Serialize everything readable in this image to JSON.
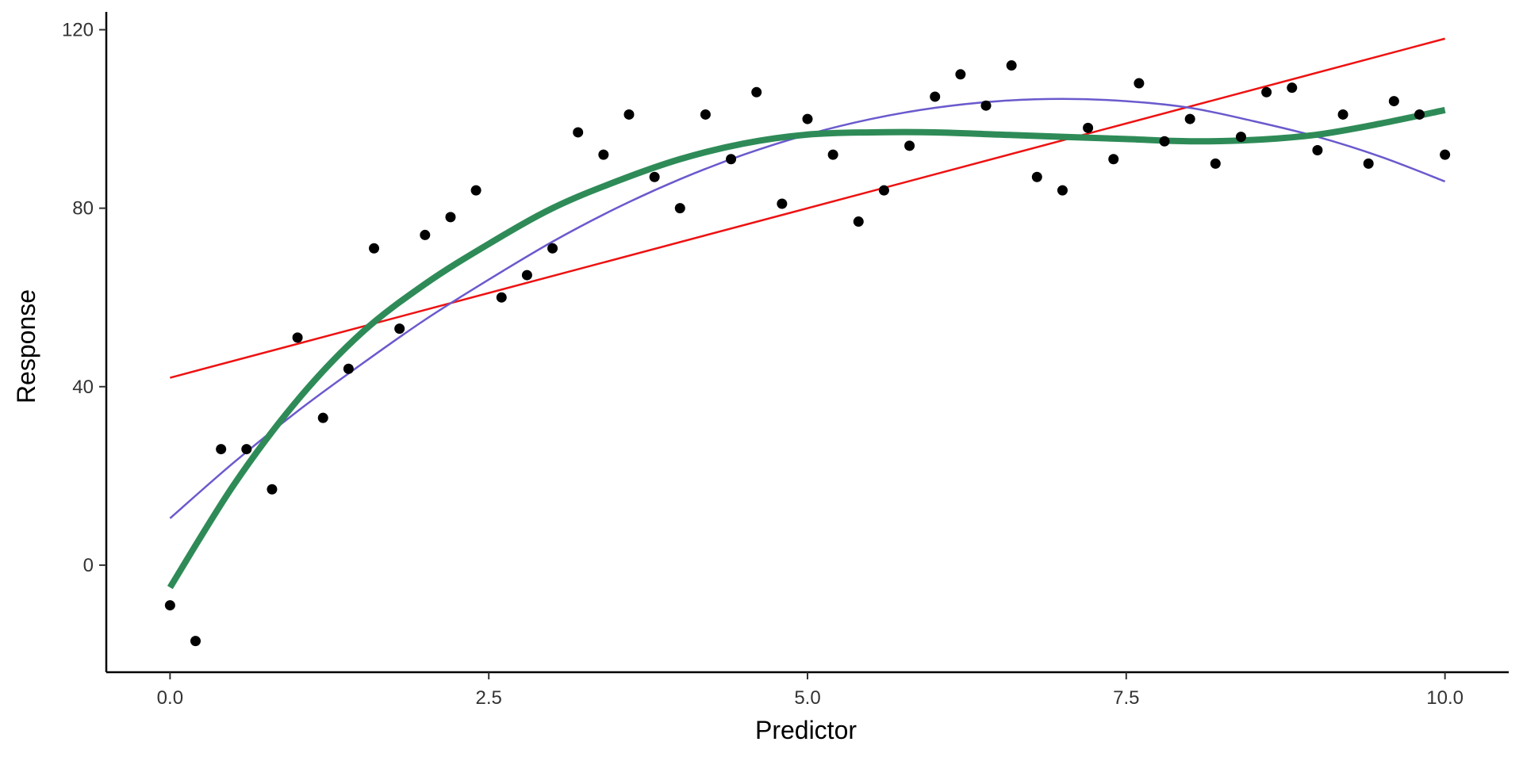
{
  "chart_data": {
    "type": "scatter",
    "title": "",
    "xlabel": "Predictor",
    "ylabel": "Response",
    "xlim": [
      -0.5,
      10.5
    ],
    "ylim": [
      -24,
      124
    ],
    "grid": false,
    "legend": "none",
    "x_ticks": [
      0.0,
      2.5,
      5.0,
      7.5,
      10.0
    ],
    "x_tick_labels": [
      "0.0",
      "2.5",
      "5.0",
      "7.5",
      "10.0"
    ],
    "y_ticks": [
      0,
      40,
      80,
      120
    ],
    "y_tick_labels": [
      "0",
      "40",
      "80",
      "120"
    ],
    "points": {
      "color": "#000000",
      "x": [
        0.0,
        0.2,
        0.4,
        0.6,
        0.8,
        1.0,
        1.2,
        1.4,
        1.6,
        1.8,
        2.0,
        2.2,
        2.4,
        2.6,
        2.8,
        3.0,
        3.2,
        3.4,
        3.6,
        3.8,
        4.0,
        4.2,
        4.4,
        4.6,
        4.8,
        5.0,
        5.2,
        5.4,
        5.6,
        5.8,
        6.0,
        6.2,
        6.4,
        6.6,
        6.8,
        7.0,
        7.2,
        7.4,
        7.6,
        7.8,
        8.0,
        8.2,
        8.4,
        8.6,
        8.8,
        9.0,
        9.2,
        9.4,
        9.6,
        9.8,
        10.0
      ],
      "y": [
        -9,
        -17,
        26,
        26,
        17,
        51,
        33,
        44,
        71,
        53,
        74,
        78,
        84,
        60,
        65,
        71,
        97,
        92,
        101,
        87,
        80,
        101,
        91,
        106,
        81,
        100,
        92,
        77,
        84,
        94,
        105,
        110,
        103,
        112,
        87,
        84,
        98,
        91,
        108,
        95,
        100,
        90,
        96,
        106,
        107,
        93,
        101,
        90,
        104,
        101,
        92
      ]
    },
    "series": [
      {
        "type": "line",
        "color": "#ee1111",
        "x": [
          0,
          10
        ],
        "values": [
          42,
          118
        ]
      },
      {
        "type": "line",
        "color": "#6a5acd",
        "x": [
          0,
          0.5,
          1,
          1.5,
          2,
          2.5,
          3,
          3.5,
          4,
          4.5,
          5,
          5.5,
          6,
          6.5,
          7,
          7.5,
          8,
          8.5,
          9,
          9.5,
          10
        ],
        "values": [
          10.5,
          23,
          34.5,
          45,
          55,
          64,
          72.5,
          80,
          86.5,
          92,
          96.5,
          100,
          102.5,
          104,
          104.5,
          104,
          102.5,
          99.5,
          96,
          91.5,
          86
        ]
      },
      {
        "type": "line",
        "color": "#2e8b57",
        "x": [
          0,
          0.5,
          1,
          1.5,
          2,
          2.5,
          3,
          3.5,
          4,
          4.5,
          5,
          5.5,
          6,
          6.5,
          7,
          7.5,
          8,
          8.5,
          9,
          9.5,
          10
        ],
        "values": [
          -5,
          18,
          37,
          52,
          63,
          72,
          80,
          86,
          91,
          94.5,
          96.5,
          97,
          97,
          96.5,
          96,
          95.5,
          95,
          95.3,
          96.5,
          99,
          102
        ]
      }
    ]
  }
}
